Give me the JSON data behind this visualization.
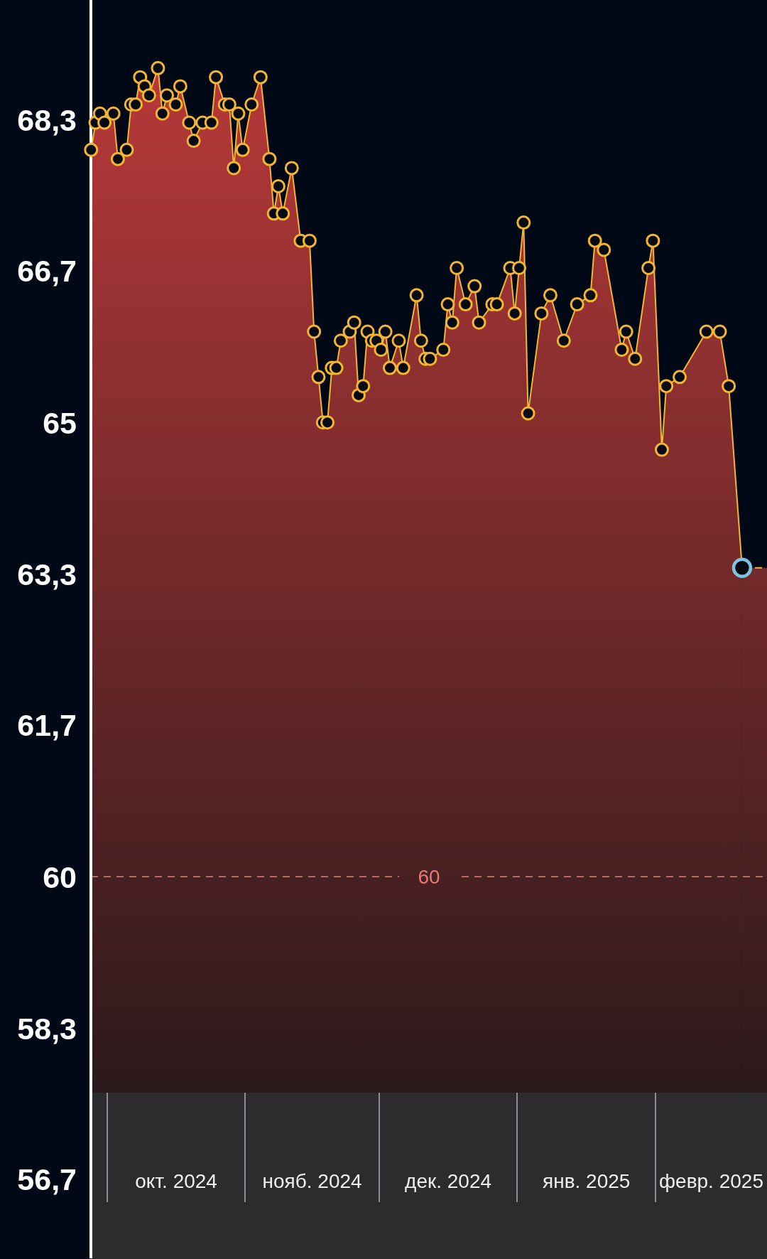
{
  "chart_data": {
    "type": "area",
    "x": [
      "2024-09-27T10:00",
      "2024-09-28T10:00",
      "2024-09-29T10:00",
      "2024-09-30T10:00",
      "2024-10-02T10:00",
      "2024-10-03T10:00",
      "2024-10-05T10:00",
      "2024-10-06T10:00",
      "2024-10-07T10:00",
      "2024-10-08T10:00",
      "2024-10-09T10:00",
      "2024-10-10T10:00",
      "2024-10-12T10:00",
      "2024-10-13T10:00",
      "2024-10-14T10:00",
      "2024-10-16T10:00",
      "2024-10-17T10:00",
      "2024-10-19T10:00",
      "2024-10-20T10:00",
      "2024-10-22T10:00",
      "2024-10-24T10:00",
      "2024-10-25T10:00",
      "2024-10-27T10:00",
      "2024-10-28T10:00",
      "2024-10-29T10:00",
      "2024-10-30T10:00",
      "2024-10-31T10:00",
      "2024-11-02T10:00",
      "2024-11-04T10:00",
      "2024-11-06T10:00",
      "2024-11-07T10:00",
      "2024-11-08T10:00",
      "2024-11-09T10:00",
      "2024-11-11T10:00",
      "2024-11-13T10:00",
      "2024-11-15T10:00",
      "2024-11-16T10:00",
      "2024-11-17T10:00",
      "2024-11-18T10:00",
      "2024-11-19T10:00",
      "2024-11-20T10:00",
      "2024-11-21T10:00",
      "2024-11-22T10:00",
      "2024-11-24T10:00",
      "2024-11-25T10:00",
      "2024-11-26T10:00",
      "2024-11-27T10:00",
      "2024-11-28T10:00",
      "2024-11-29T10:00",
      "2024-11-30T10:00",
      "2024-12-01T10:00",
      "2024-12-02T10:00",
      "2024-12-03T10:00",
      "2024-12-05T10:00",
      "2024-12-06T10:00",
      "2024-12-09T10:00",
      "2024-12-10T10:00",
      "2024-12-11T10:00",
      "2024-12-12T10:00",
      "2024-12-15T10:00",
      "2024-12-16T10:00",
      "2024-12-17T10:00",
      "2024-12-18T10:00",
      "2024-12-20T10:00",
      "2024-12-22T10:00",
      "2024-12-23T10:00",
      "2024-12-26T10:00",
      "2024-12-27T10:00",
      "2024-12-30T10:00",
      "2024-12-31T10:00",
      "2025-01-01T10:00",
      "2025-01-02T10:00",
      "2025-01-03T10:00",
      "2025-01-06T10:00",
      "2025-01-08T10:00",
      "2025-01-11T10:00",
      "2025-01-14T10:00",
      "2025-01-17T10:00",
      "2025-01-18T10:00",
      "2025-01-20T10:00",
      "2025-01-24T10:00",
      "2025-01-25T10:00",
      "2025-01-27T10:00",
      "2025-01-30T10:00",
      "2025-01-31T10:00",
      "2025-02-02T10:00",
      "2025-02-03T10:00",
      "2025-02-06T10:00",
      "2025-02-12T10:00",
      "2025-02-15T10:00",
      "2025-02-17T10:00",
      "2025-02-20T10:00"
    ],
    "series": [
      {
        "color": "#c13b3b",
        "values": [
          68.0,
          68.3,
          68.4,
          68.3,
          68.4,
          67.9,
          68.0,
          68.5,
          68.5,
          68.8,
          68.7,
          68.6,
          68.9,
          68.4,
          68.6,
          68.5,
          68.7,
          68.3,
          68.1,
          68.3,
          68.3,
          68.8,
          68.5,
          68.5,
          67.8,
          68.4,
          68.0,
          68.5,
          68.8,
          67.9,
          67.3,
          67.6,
          67.3,
          67.8,
          67.0,
          67.0,
          66.0,
          65.5,
          65.0,
          65.0,
          65.6,
          65.6,
          65.9,
          66.0,
          66.1,
          65.3,
          65.4,
          66.0,
          65.9,
          65.9,
          65.8,
          66.0,
          65.6,
          65.9,
          65.6,
          66.4,
          65.9,
          65.7,
          65.7,
          65.8,
          66.3,
          66.1,
          66.7,
          66.3,
          66.5,
          66.1,
          66.3,
          66.3,
          66.7,
          66.2,
          66.7,
          67.2,
          65.1,
          66.2,
          66.4,
          65.9,
          66.3,
          66.4,
          67.0,
          66.9,
          65.8,
          66.0,
          65.7,
          66.7,
          67.0,
          64.7,
          65.4,
          65.5,
          66.0,
          66.0,
          65.4,
          63.4
        ],
        "colors": [
          "#f2b630",
          "#f2b630",
          "#f2b630",
          "#f2b630",
          "#f2b630",
          "#f2b630",
          "#f2b630",
          "#f2b630",
          "#f2b630",
          "#f2b630",
          "#f2b630",
          "#f2b630",
          "#f2b630",
          "#f2b630",
          "#f2b630",
          "#f2b630",
          "#f2b630",
          "#f2b630",
          "#f2b630",
          "#f2b630",
          "#f2b630",
          "#f2b630",
          "#f2b630",
          "#f2b630",
          "#f2b630",
          "#f2b630",
          "#f2b630",
          "#f2b630",
          "#f2b630",
          "#f2b630",
          "#f2b630",
          "#f2b630",
          "#f2b630",
          "#f2b630",
          "#f2b630",
          "#f2b630",
          "#f2b630",
          "#f2b630",
          "#f2b630",
          "#f2b630",
          "#f2b630",
          "#f2b630",
          "#f2b630",
          "#f2b630",
          "#f2b630",
          "#f2b630",
          "#f2b630",
          "#f2b630",
          "#f2b630",
          "#f2b630",
          "#f2b630",
          "#f2b630",
          "#f2b630",
          "#f2b630",
          "#f2b630",
          "#f2b630",
          "#f2b630",
          "#f2b630",
          "#f2b630",
          "#f2b630",
          "#f2b630",
          "#f2b630",
          "#f2b630",
          "#f2b630",
          "#f2b630",
          "#f2b630",
          "#f2b630",
          "#f2b630",
          "#f2b630",
          "#f2b630",
          "#f2b630",
          "#f2b630",
          "#f2b630",
          "#f2b630",
          "#f2b630",
          "#f2b630",
          "#f2b630",
          "#f2b630",
          "#f2b630",
          "#f2b630",
          "#f2b630",
          "#f2b630",
          "#f2b630",
          "#f2b630",
          "#f2b630",
          "#f2b630",
          "#f2b630",
          "#f2b630",
          "#f2b630",
          "#f2b630",
          "#f2b630",
          "#7ec4e2"
        ]
      },
      {
        "type": "area",
        "x": [
          "2025-02-20T10:00",
          "2025-02-26"
        ],
        "values": [
          63.4,
          63.4
        ],
        "color": "#c13b3b",
        "line_style": "dashed",
        "marker": "none"
      }
    ],
    "xlim": [
      "2024-09-27T09:00",
      "2025-02-26"
    ],
    "xticks": [
      {
        "value": "2024-10-16T12:00",
        "label": "окт. 2024"
      },
      {
        "value": "2024-11-16",
        "label": "нояб. 2024"
      },
      {
        "value": "2024-12-16T12:00",
        "label": "дек. 2024"
      },
      {
        "value": "2025-01-16T12:00",
        "label": "янв. 2025"
      },
      {
        "value": "2025-02-13T12:00",
        "label": "февр. 2025"
      }
    ],
    "ylim": [
      55.8,
      69.65
    ],
    "yticks": [
      {
        "value": 68.33,
        "label": "68,3"
      },
      {
        "value": 66.67,
        "label": "66,7"
      },
      {
        "value": 65,
        "label": "65"
      },
      {
        "value": 63.33,
        "label": "63,3"
      },
      {
        "value": 61.67,
        "label": "61,7"
      },
      {
        "value": 60,
        "label": "60"
      },
      {
        "value": 58.33,
        "label": "58,3"
      },
      {
        "value": 56.67,
        "label": "56,7"
      }
    ],
    "marker": "circle",
    "ref_lines": [
      {
        "axis": "y",
        "value": 60,
        "label": "60",
        "color": "#e47b76",
        "line_style": "dashed"
      }
    ]
  }
}
